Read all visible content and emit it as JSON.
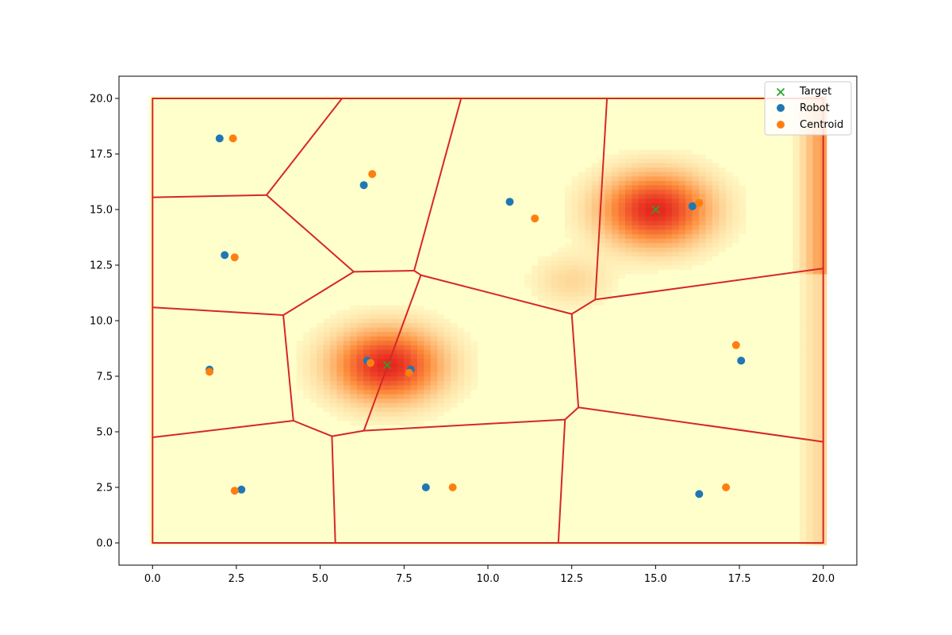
{
  "chart_data": {
    "type": "scatter",
    "title": "",
    "xlabel": "",
    "ylabel": "",
    "xlim": [
      -1,
      21
    ],
    "ylim": [
      -1,
      21
    ],
    "grid": false,
    "legend_position": "top-right",
    "xticks": [
      0.0,
      2.5,
      5.0,
      7.5,
      10.0,
      12.5,
      15.0,
      17.5,
      20.0
    ],
    "yticks": [
      0.0,
      2.5,
      5.0,
      7.5,
      10.0,
      12.5,
      15.0,
      17.5,
      20.0
    ],
    "xtick_labels": [
      "0.0",
      "2.5",
      "5.0",
      "7.5",
      "10.0",
      "12.5",
      "15.0",
      "17.5",
      "20.0"
    ],
    "ytick_labels": [
      "0.0",
      "2.5",
      "5.0",
      "7.5",
      "10.0",
      "12.5",
      "15.0",
      "17.5",
      "20.0"
    ],
    "density_peaks": [
      {
        "x": 7.0,
        "y": 8.0,
        "intensity": 1.0
      },
      {
        "x": 15.0,
        "y": 15.0,
        "intensity": 1.0
      }
    ],
    "colors": {
      "target": "#2ca02c",
      "robot": "#1f77b4",
      "centroid": "#ff7f0e",
      "voronoi": "#d62728",
      "density_low": "#ffffcc",
      "density_mid": "#fd8d3c",
      "density_high": "#e31a1c"
    },
    "series": [
      {
        "name": "Target",
        "marker": "x",
        "points": [
          [
            7.0,
            8.0
          ],
          [
            15.0,
            15.0
          ]
        ]
      },
      {
        "name": "Robot",
        "marker": "o",
        "points": [
          [
            2.0,
            18.2
          ],
          [
            6.3,
            16.1
          ],
          [
            10.65,
            15.35
          ],
          [
            16.1,
            15.15
          ],
          [
            2.15,
            12.95
          ],
          [
            1.7,
            7.8
          ],
          [
            6.4,
            8.2
          ],
          [
            7.7,
            7.8
          ],
          [
            17.55,
            8.2
          ],
          [
            2.65,
            2.4
          ],
          [
            8.15,
            2.5
          ],
          [
            16.3,
            2.2
          ]
        ]
      },
      {
        "name": "Centroid",
        "marker": "o",
        "points": [
          [
            2.4,
            18.2
          ],
          [
            6.55,
            16.6
          ],
          [
            11.4,
            14.6
          ],
          [
            16.3,
            15.3
          ],
          [
            2.45,
            12.85
          ],
          [
            1.7,
            7.7
          ],
          [
            6.5,
            8.1
          ],
          [
            7.65,
            7.65
          ],
          [
            17.4,
            8.9
          ],
          [
            2.45,
            2.35
          ],
          [
            8.95,
            2.5
          ],
          [
            17.1,
            2.5
          ]
        ]
      }
    ],
    "voronoi_edges": [
      [
        [
          0,
          0
        ],
        [
          20,
          0
        ]
      ],
      [
        [
          20,
          0
        ],
        [
          20,
          20
        ]
      ],
      [
        [
          20,
          20
        ],
        [
          0,
          20
        ]
      ],
      [
        [
          0,
          20
        ],
        [
          0,
          0
        ]
      ],
      [
        [
          0,
          15.55
        ],
        [
          3.4,
          15.65
        ]
      ],
      [
        [
          3.4,
          15.65
        ],
        [
          5.65,
          20.0
        ]
      ],
      [
        [
          3.4,
          15.65
        ],
        [
          6.0,
          12.2
        ]
      ],
      [
        [
          6.0,
          12.2
        ],
        [
          7.8,
          12.25
        ]
      ],
      [
        [
          7.8,
          12.25
        ],
        [
          9.2,
          20.0
        ]
      ],
      [
        [
          7.8,
          12.25
        ],
        [
          8.0,
          12.05
        ]
      ],
      [
        [
          6.0,
          12.2
        ],
        [
          3.9,
          10.25
        ]
      ],
      [
        [
          0,
          10.6
        ],
        [
          3.9,
          10.25
        ]
      ],
      [
        [
          3.9,
          10.25
        ],
        [
          4.2,
          5.5
        ]
      ],
      [
        [
          0,
          4.75
        ],
        [
          4.2,
          5.5
        ]
      ],
      [
        [
          4.2,
          5.5
        ],
        [
          5.35,
          4.8
        ]
      ],
      [
        [
          5.35,
          4.8
        ],
        [
          5.45,
          0.0
        ]
      ],
      [
        [
          5.35,
          4.8
        ],
        [
          6.3,
          5.05
        ]
      ],
      [
        [
          6.3,
          5.05
        ],
        [
          8.0,
          12.05
        ]
      ],
      [
        [
          6.3,
          5.05
        ],
        [
          12.3,
          5.55
        ]
      ],
      [
        [
          12.3,
          5.55
        ],
        [
          12.1,
          0.0
        ]
      ],
      [
        [
          12.3,
          5.55
        ],
        [
          12.7,
          6.1
        ]
      ],
      [
        [
          12.7,
          6.1
        ],
        [
          12.5,
          10.3
        ]
      ],
      [
        [
          8.0,
          12.05
        ],
        [
          12.5,
          10.3
        ]
      ],
      [
        [
          12.5,
          10.3
        ],
        [
          13.2,
          10.95
        ]
      ],
      [
        [
          13.2,
          10.95
        ],
        [
          13.55,
          20.0
        ]
      ],
      [
        [
          13.2,
          10.95
        ],
        [
          20.0,
          12.35
        ]
      ],
      [
        [
          12.7,
          6.1
        ],
        [
          20.0,
          4.55
        ]
      ]
    ]
  }
}
